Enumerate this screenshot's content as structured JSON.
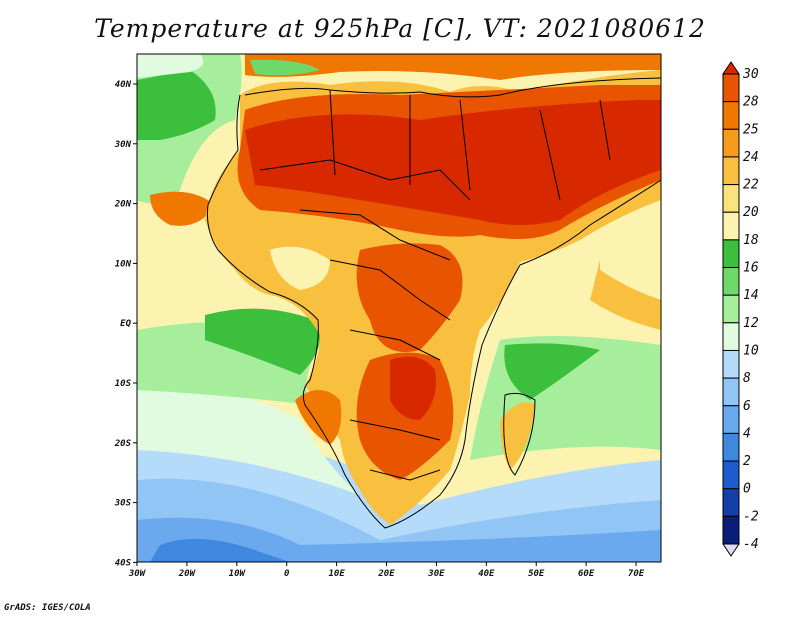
{
  "title": "Temperature at 925hPa [C], VT: 2021080612",
  "credit": "GrADS: IGES/COLA",
  "map": {
    "lon_ticks": [
      "30W",
      "20W",
      "10W",
      "0",
      "10E",
      "20E",
      "30E",
      "40E",
      "50E",
      "60E",
      "70E"
    ],
    "lat_ticks": [
      "40N",
      "30N",
      "20N",
      "10N",
      "EQ",
      "10S",
      "20S",
      "30S",
      "40S"
    ],
    "region": "Africa",
    "coastline_color": "#000000"
  },
  "colorbar": {
    "labels": [
      "30",
      "28",
      "25",
      "24",
      "22",
      "20",
      "18",
      "16",
      "14",
      "12",
      "10",
      "8",
      "6",
      "4",
      "2",
      "0",
      "-2",
      "-4"
    ],
    "colors": [
      "#d82800",
      "#e85400",
      "#f07800",
      "#f79b1c",
      "#f9c040",
      "#fbe27a",
      "#fdf3b0",
      "#3cbf3c",
      "#6fd86b",
      "#a6ee9c",
      "#e0fbe0",
      "#b4dcfa",
      "#91c5f5",
      "#6ba9ee",
      "#3f88e0",
      "#1c5ccf",
      "#133fa8",
      "#0a1e78",
      "#dcdcfa"
    ],
    "low_end_color": "#dcdcfa",
    "high_end_color": "#d82800"
  },
  "field_colors": {
    "hot": "#d82800",
    "warm": "#e85400",
    "orange": "#f07800",
    "mid": "#f9c040",
    "yellow": "#fdf3b0",
    "green": "#3cbf3c",
    "lightgreen": "#a6ee9c",
    "pale": "#e0fbe0",
    "lightblue": "#b4dcfa",
    "blue": "#6ba9ee",
    "deepblue": "#3f88e0"
  }
}
